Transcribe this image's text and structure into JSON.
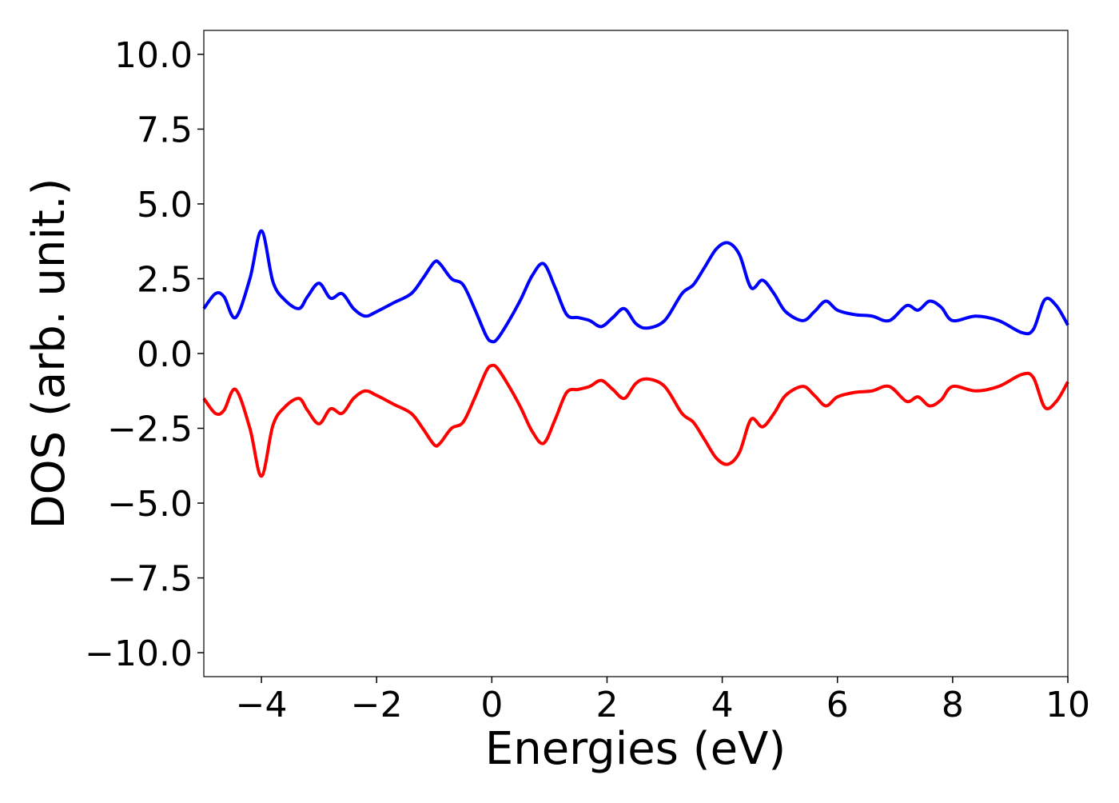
{
  "chart_data": {
    "type": "line",
    "title": "",
    "xlabel": "Energies (eV)",
    "ylabel": "DOS (arb. unit.)",
    "xlim": [
      -5,
      10
    ],
    "ylim": [
      -10.8,
      10.8
    ],
    "xticks": [
      -4,
      -2,
      0,
      2,
      4,
      6,
      8,
      10
    ],
    "xtick_labels": [
      "−4",
      "−2",
      "0",
      "2",
      "4",
      "6",
      "8",
      "10"
    ],
    "yticks": [
      10,
      7.5,
      5,
      2.5,
      0,
      -2.5,
      -5,
      -7.5,
      -10
    ],
    "ytick_labels": [
      "10.0",
      "7.5",
      "5.0",
      "2.5",
      "0.0",
      "−2.5",
      "−5.0",
      "−7.5",
      "−10.0"
    ],
    "grid": false,
    "legend": "none",
    "series": [
      {
        "color": "#0000ff",
        "x": [
          -5.0,
          -4.8,
          -4.65,
          -4.45,
          -4.2,
          -4.0,
          -3.8,
          -3.6,
          -3.35,
          -3.2,
          -3.0,
          -2.8,
          -2.6,
          -2.4,
          -2.2,
          -2.0,
          -1.7,
          -1.4,
          -1.2,
          -1.0,
          -0.9,
          -0.7,
          -0.5,
          -0.3,
          -0.1,
          0.0,
          0.1,
          0.3,
          0.5,
          0.7,
          0.9,
          1.1,
          1.3,
          1.5,
          1.7,
          1.9,
          2.1,
          2.3,
          2.5,
          2.7,
          3.0,
          3.3,
          3.5,
          3.7,
          3.9,
          4.1,
          4.3,
          4.5,
          4.7,
          4.9,
          5.1,
          5.4,
          5.6,
          5.8,
          6.0,
          6.3,
          6.6,
          6.9,
          7.2,
          7.4,
          7.6,
          7.8,
          8.0,
          8.4,
          8.8,
          9.2,
          9.4,
          9.6,
          9.8,
          10.0
        ],
        "y": [
          1.5,
          2.0,
          1.9,
          1.2,
          2.5,
          4.1,
          2.4,
          1.8,
          1.5,
          1.9,
          2.35,
          1.85,
          2.0,
          1.5,
          1.25,
          1.4,
          1.7,
          2.0,
          2.5,
          3.05,
          3.0,
          2.5,
          2.3,
          1.5,
          0.6,
          0.4,
          0.5,
          1.1,
          1.8,
          2.6,
          3.0,
          2.2,
          1.3,
          1.2,
          1.1,
          0.9,
          1.2,
          1.5,
          1.0,
          0.85,
          1.1,
          2.0,
          2.3,
          2.9,
          3.5,
          3.7,
          3.3,
          2.2,
          2.45,
          2.0,
          1.4,
          1.1,
          1.4,
          1.75,
          1.45,
          1.3,
          1.25,
          1.1,
          1.6,
          1.45,
          1.75,
          1.55,
          1.1,
          1.25,
          1.1,
          0.7,
          0.8,
          1.8,
          1.6,
          0.95
        ]
      },
      {
        "color": "#ff0000",
        "x": [
          -5.0,
          -4.8,
          -4.65,
          -4.45,
          -4.2,
          -4.0,
          -3.8,
          -3.6,
          -3.35,
          -3.2,
          -3.0,
          -2.8,
          -2.6,
          -2.4,
          -2.2,
          -2.0,
          -1.7,
          -1.4,
          -1.2,
          -1.0,
          -0.9,
          -0.7,
          -0.5,
          -0.3,
          -0.1,
          0.0,
          0.1,
          0.3,
          0.5,
          0.7,
          0.9,
          1.1,
          1.3,
          1.5,
          1.7,
          1.9,
          2.1,
          2.3,
          2.5,
          2.7,
          3.0,
          3.3,
          3.5,
          3.7,
          3.9,
          4.1,
          4.3,
          4.5,
          4.7,
          4.9,
          5.1,
          5.4,
          5.6,
          5.8,
          6.0,
          6.3,
          6.6,
          6.9,
          7.2,
          7.4,
          7.6,
          7.8,
          8.0,
          8.4,
          8.8,
          9.2,
          9.4,
          9.6,
          9.8,
          10.0
        ],
        "y": [
          -1.5,
          -2.0,
          -1.9,
          -1.2,
          -2.5,
          -4.1,
          -2.4,
          -1.8,
          -1.5,
          -1.9,
          -2.35,
          -1.85,
          -2.0,
          -1.5,
          -1.25,
          -1.4,
          -1.7,
          -2.0,
          -2.5,
          -3.05,
          -3.0,
          -2.5,
          -2.3,
          -1.5,
          -0.6,
          -0.4,
          -0.5,
          -1.1,
          -1.8,
          -2.6,
          -3.0,
          -2.2,
          -1.3,
          -1.2,
          -1.1,
          -0.9,
          -1.2,
          -1.5,
          -1.0,
          -0.85,
          -1.1,
          -2.0,
          -2.3,
          -2.9,
          -3.5,
          -3.7,
          -3.3,
          -2.2,
          -2.45,
          -2.0,
          -1.4,
          -1.1,
          -1.4,
          -1.75,
          -1.45,
          -1.3,
          -1.25,
          -1.1,
          -1.6,
          -1.45,
          -1.75,
          -1.55,
          -1.1,
          -1.25,
          -1.1,
          -0.7,
          -0.8,
          -1.8,
          -1.6,
          -0.95
        ]
      }
    ]
  }
}
